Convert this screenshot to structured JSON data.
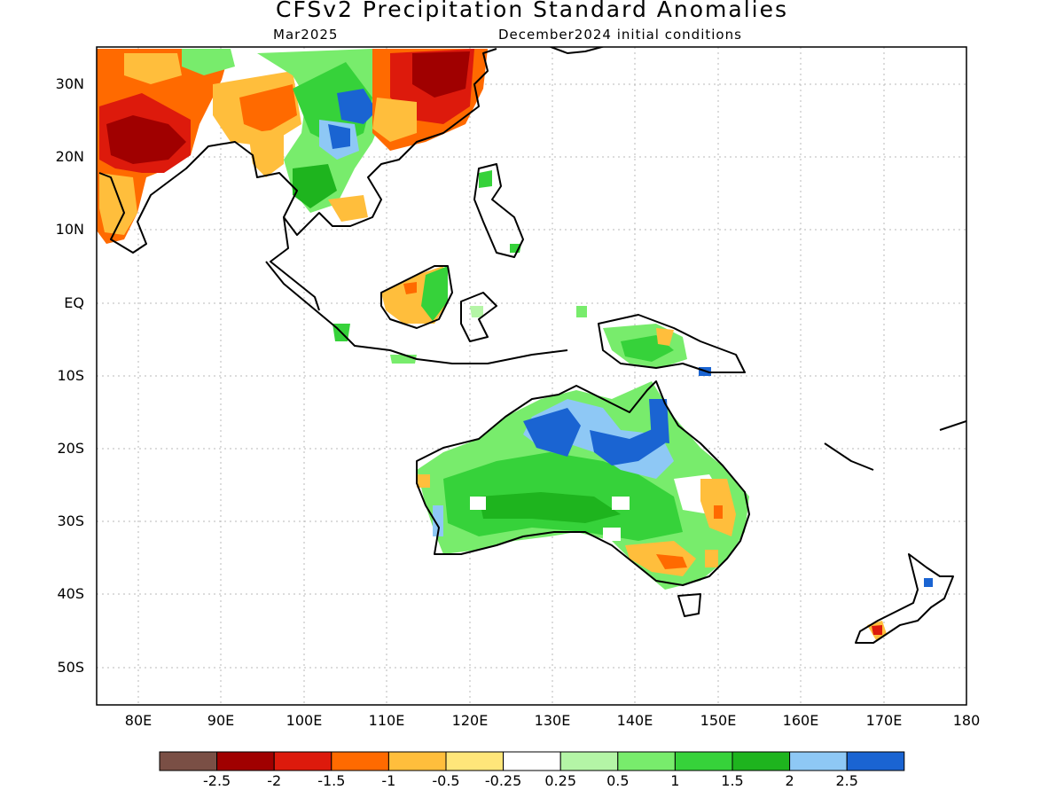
{
  "title": "CFSv2 Precipitation Standard Anomalies",
  "subtitle_left": "Mar2025",
  "subtitle_right": "December2024 initial conditions",
  "lat_labels": [
    "30N",
    "20N",
    "10N",
    "EQ",
    "10S",
    "20S",
    "30S",
    "40S",
    "50S"
  ],
  "lon_labels": [
    "80E",
    "90E",
    "100E",
    "110E",
    "120E",
    "130E",
    "140E",
    "150E",
    "160E",
    "170E",
    "180"
  ],
  "colorbar": {
    "colors": [
      "#7a4f45",
      "#a00000",
      "#dd1a0c",
      "#ff6a00",
      "#ffbe3c",
      "#ffe67a",
      "#ffffff",
      "#b4f5a6",
      "#78ec6c",
      "#36d23a",
      "#1eb41e",
      "#8ec8f5",
      "#1a64d2"
    ],
    "labels": [
      "-2.5",
      "-2",
      "-1.5",
      "-1",
      "-0.5",
      "-0.25",
      "0.25",
      "0.5",
      "1",
      "1.5",
      "2",
      "2.5"
    ]
  },
  "map": {
    "lon_range": [
      75,
      180
    ],
    "lat_range": [
      -55,
      35
    ],
    "grid_lines": "dotted"
  }
}
